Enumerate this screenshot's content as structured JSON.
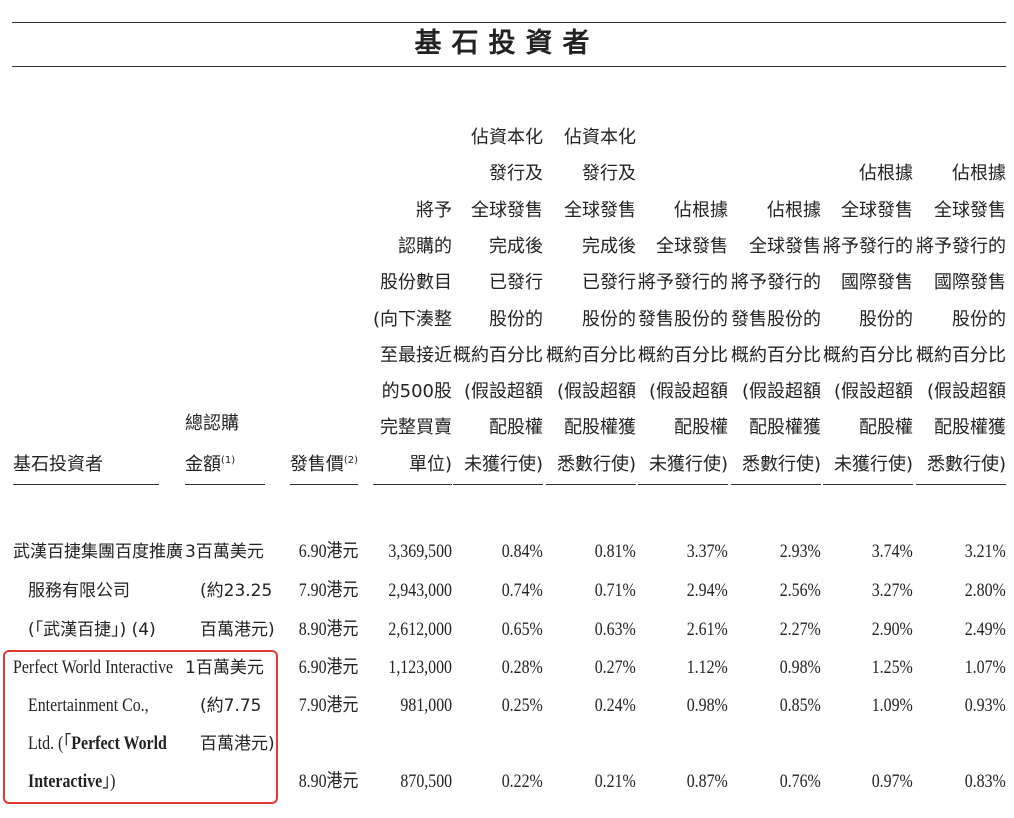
{
  "title": "基石投資者",
  "headers": [
    {
      "lines": [
        "基石投資者"
      ],
      "note": ""
    },
    {
      "lines": [
        "總認購",
        "金額"
      ],
      "note": "(1)"
    },
    {
      "lines": [
        "發售價"
      ],
      "note": "(2)"
    },
    {
      "lines": [
        "將予",
        "認購的",
        "股份數目",
        "(向下湊整",
        "至最接近",
        "的500股",
        "完整買賣",
        "單位)"
      ],
      "note": ""
    },
    {
      "lines": [
        "佔資本化",
        "發行及",
        "全球發售",
        "完成後",
        "已發行",
        "股份的",
        "概約百分比",
        "(假設超額",
        "配股權",
        "未獲行使)"
      ],
      "note": ""
    },
    {
      "lines": [
        "佔資本化",
        "發行及",
        "全球發售",
        "完成後",
        "已發行",
        "股份的",
        "概約百分比",
        "(假設超額",
        "配股權獲",
        "悉數行使)"
      ],
      "note": ""
    },
    {
      "lines": [
        "佔根據",
        "全球發售",
        "將予發行的",
        "發售股份的",
        "概約百分比",
        "(假設超額",
        "配股權",
        "未獲行使)"
      ],
      "note": ""
    },
    {
      "lines": [
        "佔根據",
        "全球發售",
        "將予發行的",
        "發售股份的",
        "概約百分比",
        "(假設超額",
        "配股權獲",
        "悉數行使)"
      ],
      "note": ""
    },
    {
      "lines": [
        "佔根據",
        "全球發售",
        "將予發行的",
        "國際發售",
        "股份的",
        "概約百分比",
        "(假設超額",
        "配股權",
        "未獲行使)"
      ],
      "note": ""
    },
    {
      "lines": [
        "佔根據",
        "全球發售",
        "將予發行的",
        "國際發售",
        "股份的",
        "概約百分比",
        "(假設超額",
        "配股權獲",
        "悉數行使)"
      ],
      "note": ""
    }
  ],
  "investors": [
    {
      "name_lines": [
        "武漢百捷集團百度推廣",
        "服務有限公司",
        "(「武漢百捷」) (4)"
      ],
      "amount_lines": [
        "3百萬美元",
        "(約23.25",
        "百萬港元)"
      ],
      "rows": [
        [
          "6.90港元",
          "3,369,500",
          "0.84%",
          "0.81%",
          "3.37%",
          "2.93%",
          "3.74%",
          "3.21%"
        ],
        [
          "7.90港元",
          "2,943,000",
          "0.74%",
          "0.71%",
          "2.94%",
          "2.56%",
          "3.27%",
          "2.80%"
        ],
        [
          "8.90港元",
          "2,612,000",
          "0.65%",
          "0.63%",
          "2.61%",
          "2.27%",
          "2.90%",
          "2.49%"
        ]
      ]
    },
    {
      "name_lines": [
        "Perfect World Interactive",
        "Entertainment Co.,",
        "Ltd. (「Perfect World",
        "Interactive」)"
      ],
      "amount_lines": [
        "1百萬美元",
        "(約7.75",
        "百萬港元)"
      ],
      "rows": [
        [
          "6.90港元",
          "1,123,000",
          "0.28%",
          "0.27%",
          "1.12%",
          "0.98%",
          "1.25%",
          "1.07%"
        ],
        [
          "7.90港元",
          "981,000",
          "0.25%",
          "0.24%",
          "0.98%",
          "0.85%",
          "1.09%",
          "0.93%"
        ],
        null,
        [
          "8.90港元",
          "870,500",
          "0.22%",
          "0.21%",
          "0.87%",
          "0.76%",
          "0.97%",
          "0.83%"
        ]
      ],
      "highlighted": true,
      "highlight_color": "#e53935"
    }
  ]
}
